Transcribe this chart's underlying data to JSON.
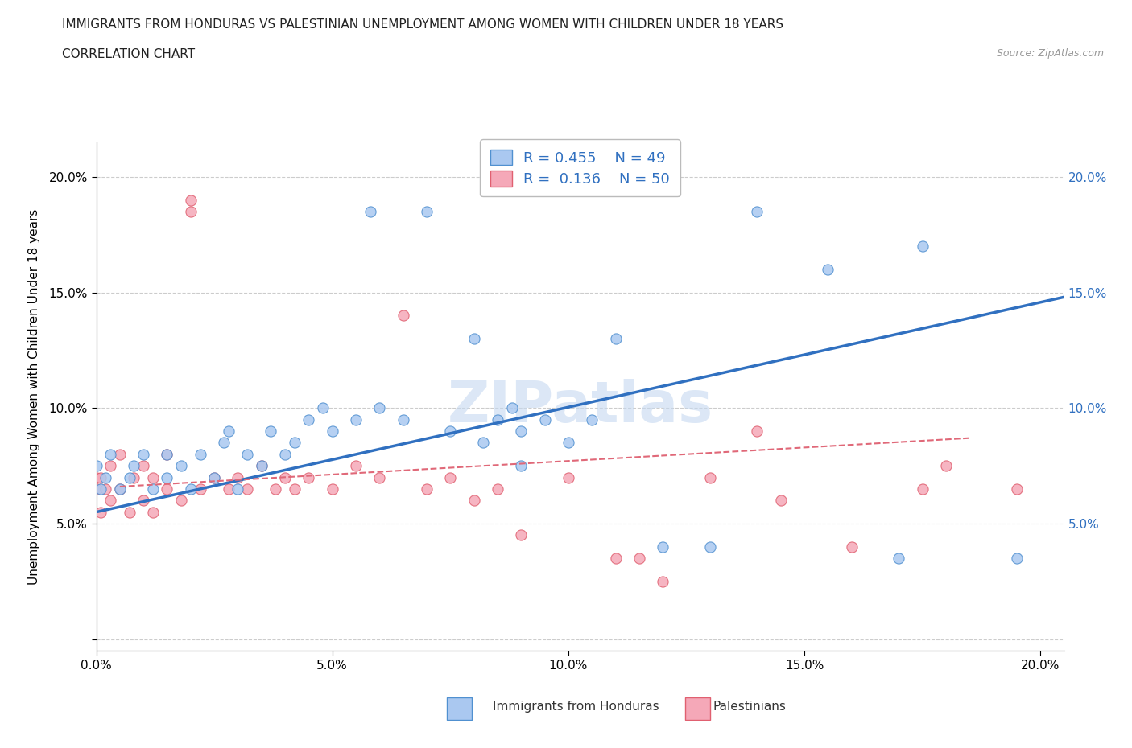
{
  "title_line1": "IMMIGRANTS FROM HONDURAS VS PALESTINIAN UNEMPLOYMENT AMONG WOMEN WITH CHILDREN UNDER 18 YEARS",
  "title_line2": "CORRELATION CHART",
  "source": "Source: ZipAtlas.com",
  "ylabel": "Unemployment Among Women with Children Under 18 years",
  "xlim": [
    0.0,
    0.205
  ],
  "ylim": [
    -0.005,
    0.215
  ],
  "yticks": [
    0.0,
    0.05,
    0.1,
    0.15,
    0.2
  ],
  "ytick_labels": [
    "",
    "5.0%",
    "10.0%",
    "15.0%",
    "20.0%"
  ],
  "xticks": [
    0.0,
    0.05,
    0.1,
    0.15,
    0.2
  ],
  "xtick_labels": [
    "0.0%",
    "5.0%",
    "10.0%",
    "15.0%",
    "20.0%"
  ],
  "blue_color": "#aac8f0",
  "pink_color": "#f5a8b8",
  "blue_edge_color": "#5090d0",
  "pink_edge_color": "#e06070",
  "blue_line_color": "#3070c0",
  "pink_line_color": "#e06878",
  "watermark_color": "#c5d8f0",
  "blue_scatter_x": [
    0.0,
    0.001,
    0.002,
    0.003,
    0.005,
    0.007,
    0.008,
    0.01,
    0.012,
    0.015,
    0.015,
    0.018,
    0.02,
    0.022,
    0.025,
    0.027,
    0.028,
    0.03,
    0.032,
    0.035,
    0.037,
    0.04,
    0.042,
    0.045,
    0.048,
    0.05,
    0.055,
    0.058,
    0.06,
    0.065,
    0.07,
    0.075,
    0.08,
    0.082,
    0.085,
    0.088,
    0.09,
    0.09,
    0.095,
    0.1,
    0.105,
    0.11,
    0.12,
    0.13,
    0.14,
    0.155,
    0.17,
    0.175,
    0.195
  ],
  "blue_scatter_y": [
    0.075,
    0.065,
    0.07,
    0.08,
    0.065,
    0.07,
    0.075,
    0.08,
    0.065,
    0.07,
    0.08,
    0.075,
    0.065,
    0.08,
    0.07,
    0.085,
    0.09,
    0.065,
    0.08,
    0.075,
    0.09,
    0.08,
    0.085,
    0.095,
    0.1,
    0.09,
    0.095,
    0.185,
    0.1,
    0.095,
    0.185,
    0.09,
    0.13,
    0.085,
    0.095,
    0.1,
    0.075,
    0.09,
    0.095,
    0.085,
    0.095,
    0.13,
    0.04,
    0.04,
    0.185,
    0.16,
    0.035,
    0.17,
    0.035
  ],
  "pink_scatter_x": [
    0.0,
    0.0,
    0.001,
    0.001,
    0.002,
    0.003,
    0.003,
    0.005,
    0.005,
    0.007,
    0.008,
    0.01,
    0.01,
    0.012,
    0.012,
    0.015,
    0.015,
    0.018,
    0.02,
    0.02,
    0.022,
    0.025,
    0.028,
    0.03,
    0.032,
    0.035,
    0.038,
    0.04,
    0.042,
    0.045,
    0.05,
    0.055,
    0.06,
    0.065,
    0.07,
    0.075,
    0.08,
    0.085,
    0.09,
    0.1,
    0.11,
    0.115,
    0.12,
    0.13,
    0.14,
    0.145,
    0.16,
    0.175,
    0.18,
    0.195
  ],
  "pink_scatter_y": [
    0.07,
    0.065,
    0.055,
    0.07,
    0.065,
    0.06,
    0.075,
    0.065,
    0.08,
    0.055,
    0.07,
    0.06,
    0.075,
    0.055,
    0.07,
    0.065,
    0.08,
    0.06,
    0.185,
    0.19,
    0.065,
    0.07,
    0.065,
    0.07,
    0.065,
    0.075,
    0.065,
    0.07,
    0.065,
    0.07,
    0.065,
    0.075,
    0.07,
    0.14,
    0.065,
    0.07,
    0.06,
    0.065,
    0.045,
    0.07,
    0.035,
    0.035,
    0.025,
    0.07,
    0.09,
    0.06,
    0.04,
    0.065,
    0.075,
    0.065
  ],
  "blue_line_x0": 0.0,
  "blue_line_y0": 0.055,
  "blue_line_x1": 0.205,
  "blue_line_y1": 0.148,
  "pink_line_x0": 0.005,
  "pink_line_y0": 0.066,
  "pink_line_x1": 0.185,
  "pink_line_y1": 0.087
}
